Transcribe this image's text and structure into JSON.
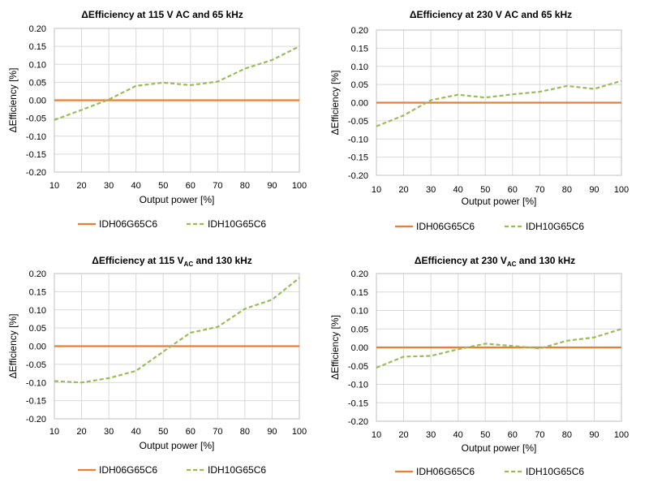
{
  "chart_data": [
    {
      "type": "line",
      "title": "ΔEfficiency at 115 V AC and 65 kHz",
      "xlabel": "Output power [%]",
      "ylabel": "ΔEfficiency [%]",
      "x": [
        10,
        20,
        30,
        40,
        50,
        60,
        70,
        80,
        90,
        100
      ],
      "xticks": [
        "10",
        "20",
        "30",
        "40",
        "50",
        "60",
        "70",
        "80",
        "90",
        "100"
      ],
      "ylim": [
        -0.2,
        0.2
      ],
      "yticks": [
        "0.20",
        "0.15",
        "0.10",
        "0.05",
        "0.00",
        "-0.05",
        "-0.10",
        "-0.15",
        "-0.20"
      ],
      "grid": true,
      "legend": "bottom",
      "series": [
        {
          "name": "IDH06G65C6",
          "color": "#ED7D31",
          "style": "solid",
          "values": [
            0,
            0,
            0,
            0,
            0,
            0,
            0,
            0,
            0,
            0
          ]
        },
        {
          "name": "IDH10G65C6",
          "color": "#9BBB59",
          "style": "dashed",
          "values": [
            -0.055,
            -0.027,
            0.002,
            0.04,
            0.049,
            0.042,
            0.052,
            0.088,
            0.112,
            0.15
          ]
        }
      ]
    },
    {
      "type": "line",
      "title": "ΔEfficiency at 230 V AC and 65 kHz",
      "xlabel": "Output power [%]",
      "ylabel": "ΔEfficiency [%]",
      "x": [
        10,
        20,
        30,
        40,
        50,
        60,
        70,
        80,
        90,
        100
      ],
      "xticks": [
        "10",
        "20",
        "30",
        "40",
        "50",
        "60",
        "70",
        "80",
        "90",
        "100"
      ],
      "ylim": [
        -0.2,
        0.2
      ],
      "yticks": [
        "0.20",
        "0.15",
        "0.10",
        "0.05",
        "0.00",
        "-0.05",
        "-0.10",
        "-0.15",
        "-0.20"
      ],
      "grid": true,
      "legend": "bottom",
      "series": [
        {
          "name": "IDH06G65C6",
          "color": "#ED7D31",
          "style": "solid",
          "values": [
            0,
            0,
            0,
            0,
            0,
            0,
            0,
            0,
            0,
            0
          ]
        },
        {
          "name": "IDH10G65C6",
          "color": "#9BBB59",
          "style": "dashed",
          "values": [
            -0.065,
            -0.035,
            0.007,
            0.022,
            0.014,
            0.023,
            0.03,
            0.046,
            0.038,
            0.06
          ]
        }
      ]
    },
    {
      "type": "line",
      "title": "ΔEfficiency at 115 V",
      "title_sub": "AC",
      "title_tail": " and 130 kHz",
      "xlabel": "Output power [%]",
      "ylabel": "ΔEfficiency [%]",
      "x": [
        10,
        20,
        30,
        40,
        50,
        60,
        70,
        80,
        90,
        100
      ],
      "xticks": [
        "10",
        "20",
        "30",
        "40",
        "50",
        "60",
        "70",
        "80",
        "90",
        "100"
      ],
      "ylim": [
        -0.2,
        0.2
      ],
      "yticks": [
        "0.20",
        "0.15",
        "0.10",
        "0.05",
        "0.00",
        "-0.05",
        "-0.10",
        "-0.15",
        "-0.20"
      ],
      "grid": true,
      "legend": "bottom",
      "series": [
        {
          "name": "IDH06G65C6",
          "color": "#ED7D31",
          "style": "solid",
          "values": [
            0,
            0,
            0,
            0,
            0,
            0,
            0,
            0,
            0,
            0
          ]
        },
        {
          "name": "IDH10G65C6",
          "color": "#9BBB59",
          "style": "dashed",
          "values": [
            -0.096,
            -0.1,
            -0.088,
            -0.068,
            -0.015,
            0.037,
            0.053,
            0.103,
            0.128,
            0.188
          ]
        }
      ]
    },
    {
      "type": "line",
      "title": "ΔEfficiency at 230 V",
      "title_sub": "AC",
      "title_tail": " and 130 kHz",
      "xlabel": "Output power [%]",
      "ylabel": "ΔEfficiency [%]",
      "x": [
        10,
        20,
        30,
        40,
        50,
        60,
        70,
        80,
        90,
        100
      ],
      "xticks": [
        "10",
        "20",
        "30",
        "40",
        "50",
        "60",
        "70",
        "80",
        "90",
        "100"
      ],
      "ylim": [
        -0.2,
        0.2
      ],
      "yticks": [
        "0.20",
        "0.15",
        "0.10",
        "0.05",
        "0.00",
        "-0.05",
        "-0.10",
        "-0.15",
        "-0.20"
      ],
      "grid": true,
      "legend": "bottom",
      "series": [
        {
          "name": "IDH06G65C6",
          "color": "#ED7D31",
          "style": "solid",
          "values": [
            0,
            0,
            0,
            0,
            0,
            0,
            0,
            0,
            0,
            0
          ]
        },
        {
          "name": "IDH10G65C6",
          "color": "#9BBB59",
          "style": "dashed",
          "values": [
            -0.055,
            -0.025,
            -0.023,
            -0.005,
            0.01,
            0.004,
            -0.003,
            0.018,
            0.027,
            0.05
          ]
        }
      ]
    }
  ]
}
